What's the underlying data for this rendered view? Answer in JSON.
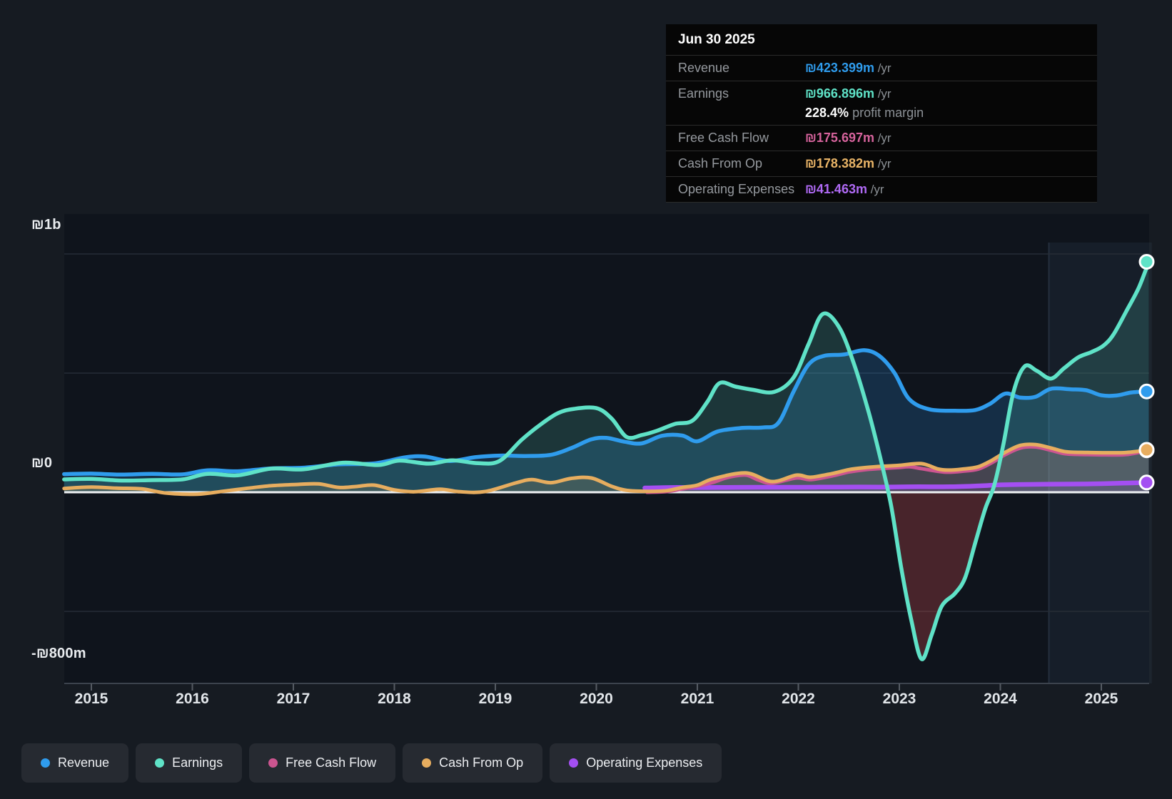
{
  "tooltip": {
    "date": "Jun 30 2025",
    "rows": [
      {
        "key": "revenue",
        "label": "Revenue",
        "value": "₪423.399m",
        "suffix": " /yr",
        "color": "#2f9ced"
      },
      {
        "key": "earnings",
        "label": "Earnings",
        "value": "₪966.896m",
        "suffix": " /yr",
        "color": "#5fe2c7",
        "extra_bold": "228.4%",
        "extra_text": " profit margin"
      },
      {
        "key": "free-cash-flow",
        "label": "Free Cash Flow",
        "value": "₪175.697m",
        "suffix": " /yr",
        "color": "#d6639c"
      },
      {
        "key": "cash-from-op",
        "label": "Cash From Op",
        "value": "₪178.382m",
        "suffix": " /yr",
        "color": "#e9b467"
      },
      {
        "key": "operating-expenses",
        "label": "Operating Expenses",
        "value": "₪41.463m",
        "suffix": " /yr",
        "color": "#b06af5"
      }
    ]
  },
  "y_axis": {
    "labels": [
      {
        "text": "₪1b",
        "value": 1000
      },
      {
        "text": "₪0",
        "value": 0
      },
      {
        "text": "-₪800m",
        "value": -800
      }
    ]
  },
  "x_axis": {
    "labels": [
      "2015",
      "2016",
      "2017",
      "2018",
      "2019",
      "2020",
      "2021",
      "2022",
      "2023",
      "2024",
      "2025"
    ]
  },
  "legend": [
    {
      "label": "Revenue",
      "color": "#2f9ced"
    },
    {
      "label": "Earnings",
      "color": "#5fe2c7"
    },
    {
      "label": "Free Cash Flow",
      "color": "#cc5590"
    },
    {
      "label": "Cash From Op",
      "color": "#e7ad5f"
    },
    {
      "label": "Operating Expenses",
      "color": "#a44ff2"
    }
  ],
  "chart_data": {
    "type": "area",
    "x_unit": "fractional_year",
    "xlim": [
      2014.73,
      2025.5
    ],
    "ylim": [
      -800,
      1000
    ],
    "y_unit": "ILS millions",
    "gridline_values": [
      1000,
      500,
      0,
      -500
    ],
    "zero_line_value": 0,
    "highlight_band": {
      "from": 2024.48,
      "to": 2025.5
    },
    "series": [
      {
        "name": "Revenue",
        "color": "#2f9ced",
        "fill": "rgba(45,140,225,0.22)",
        "points": [
          [
            2014.73,
            76
          ],
          [
            2015.0,
            78
          ],
          [
            2015.3,
            74
          ],
          [
            2015.6,
            77
          ],
          [
            2015.9,
            75
          ],
          [
            2016.15,
            92
          ],
          [
            2016.45,
            88
          ],
          [
            2016.78,
            100
          ],
          [
            2017.1,
            103
          ],
          [
            2017.45,
            117
          ],
          [
            2017.8,
            121
          ],
          [
            2018.1,
            146
          ],
          [
            2018.3,
            150
          ],
          [
            2018.55,
            131
          ],
          [
            2018.8,
            147
          ],
          [
            2019.05,
            154
          ],
          [
            2019.3,
            152
          ],
          [
            2019.55,
            157
          ],
          [
            2019.75,
            185
          ],
          [
            2019.95,
            222
          ],
          [
            2020.1,
            228
          ],
          [
            2020.28,
            212
          ],
          [
            2020.45,
            205
          ],
          [
            2020.65,
            237
          ],
          [
            2020.85,
            238
          ],
          [
            2021.0,
            214
          ],
          [
            2021.2,
            255
          ],
          [
            2021.45,
            270
          ],
          [
            2021.65,
            272
          ],
          [
            2021.8,
            290
          ],
          [
            2021.95,
            420
          ],
          [
            2022.1,
            535
          ],
          [
            2022.25,
            572
          ],
          [
            2022.45,
            578
          ],
          [
            2022.65,
            596
          ],
          [
            2022.8,
            573
          ],
          [
            2022.95,
            502
          ],
          [
            2023.1,
            390
          ],
          [
            2023.3,
            348
          ],
          [
            2023.55,
            342
          ],
          [
            2023.75,
            345
          ],
          [
            2023.9,
            372
          ],
          [
            2024.05,
            414
          ],
          [
            2024.2,
            397
          ],
          [
            2024.35,
            401
          ],
          [
            2024.5,
            434
          ],
          [
            2024.7,
            432
          ],
          [
            2024.85,
            428
          ],
          [
            2025.0,
            407
          ],
          [
            2025.15,
            406
          ],
          [
            2025.3,
            419
          ],
          [
            2025.47,
            423
          ]
        ]
      },
      {
        "name": "Earnings",
        "color": "#5fe2c7",
        "fill": "rgba(95,226,200,0.17)",
        "fill_negative": "rgba(205,75,80,0.30)",
        "points": [
          [
            2014.73,
            54
          ],
          [
            2015.0,
            56
          ],
          [
            2015.3,
            49
          ],
          [
            2015.6,
            51
          ],
          [
            2015.9,
            54
          ],
          [
            2016.15,
            77
          ],
          [
            2016.45,
            71
          ],
          [
            2016.78,
            99
          ],
          [
            2017.1,
            96
          ],
          [
            2017.49,
            124
          ],
          [
            2017.84,
            114
          ],
          [
            2018.05,
            133
          ],
          [
            2018.34,
            120
          ],
          [
            2018.57,
            134
          ],
          [
            2018.83,
            122
          ],
          [
            2019.04,
            131
          ],
          [
            2019.26,
            220
          ],
          [
            2019.45,
            285
          ],
          [
            2019.62,
            332
          ],
          [
            2019.78,
            350
          ],
          [
            2020.0,
            353
          ],
          [
            2020.15,
            310
          ],
          [
            2020.3,
            232
          ],
          [
            2020.45,
            240
          ],
          [
            2020.6,
            258
          ],
          [
            2020.78,
            287
          ],
          [
            2020.95,
            300
          ],
          [
            2021.1,
            380
          ],
          [
            2021.22,
            458
          ],
          [
            2021.38,
            443
          ],
          [
            2021.55,
            430
          ],
          [
            2021.76,
            421
          ],
          [
            2021.95,
            480
          ],
          [
            2022.1,
            620
          ],
          [
            2022.24,
            748
          ],
          [
            2022.4,
            695
          ],
          [
            2022.55,
            540
          ],
          [
            2022.7,
            330
          ],
          [
            2022.82,
            130
          ],
          [
            2022.92,
            -60
          ],
          [
            2023.02,
            -320
          ],
          [
            2023.12,
            -540
          ],
          [
            2023.22,
            -700
          ],
          [
            2023.32,
            -598
          ],
          [
            2023.42,
            -478
          ],
          [
            2023.55,
            -425
          ],
          [
            2023.65,
            -360
          ],
          [
            2023.75,
            -215
          ],
          [
            2023.85,
            -70
          ],
          [
            2023.94,
            30
          ],
          [
            2024.03,
            200
          ],
          [
            2024.13,
            420
          ],
          [
            2024.24,
            528
          ],
          [
            2024.36,
            510
          ],
          [
            2024.5,
            477
          ],
          [
            2024.63,
            520
          ],
          [
            2024.77,
            566
          ],
          [
            2024.9,
            588
          ],
          [
            2025.02,
            615
          ],
          [
            2025.12,
            662
          ],
          [
            2025.25,
            762
          ],
          [
            2025.37,
            858
          ],
          [
            2025.47,
            967
          ]
        ]
      },
      {
        "name": "Free Cash Flow",
        "color": "#cc5590",
        "fill": "rgba(204,85,144,0.10)",
        "points": [
          [
            2020.5,
            0
          ],
          [
            2020.7,
            3
          ],
          [
            2020.85,
            14
          ],
          [
            2021.0,
            25
          ],
          [
            2021.16,
            42
          ],
          [
            2021.3,
            62
          ],
          [
            2021.48,
            72
          ],
          [
            2021.6,
            52
          ],
          [
            2021.74,
            38
          ],
          [
            2021.98,
            60
          ],
          [
            2022.12,
            53
          ],
          [
            2022.33,
            68
          ],
          [
            2022.5,
            85
          ],
          [
            2022.65,
            94
          ],
          [
            2022.8,
            99
          ],
          [
            2023.0,
            104
          ],
          [
            2023.1,
            107
          ],
          [
            2023.22,
            99
          ],
          [
            2023.38,
            88
          ],
          [
            2023.48,
            84
          ],
          [
            2023.62,
            88
          ],
          [
            2023.78,
            97
          ],
          [
            2023.92,
            125
          ],
          [
            2024.05,
            158
          ],
          [
            2024.2,
            186
          ],
          [
            2024.35,
            190
          ],
          [
            2024.5,
            176
          ],
          [
            2024.65,
            161
          ],
          [
            2024.85,
            158
          ],
          [
            2025.05,
            157
          ],
          [
            2025.25,
            158
          ],
          [
            2025.47,
            176
          ]
        ]
      },
      {
        "name": "Cash From Op",
        "color": "#e7ad5f",
        "fill": "rgba(231,173,95,0.16)",
        "points": [
          [
            2014.73,
            16
          ],
          [
            2015.0,
            22
          ],
          [
            2015.25,
            17
          ],
          [
            2015.5,
            14
          ],
          [
            2015.75,
            -4
          ],
          [
            2016.05,
            -8
          ],
          [
            2016.3,
            4
          ],
          [
            2016.55,
            17
          ],
          [
            2016.8,
            28
          ],
          [
            2017.05,
            33
          ],
          [
            2017.25,
            35
          ],
          [
            2017.45,
            20
          ],
          [
            2017.62,
            24
          ],
          [
            2017.8,
            30
          ],
          [
            2018.0,
            10
          ],
          [
            2018.2,
            2
          ],
          [
            2018.45,
            13
          ],
          [
            2018.65,
            2
          ],
          [
            2018.9,
            3
          ],
          [
            2019.2,
            39
          ],
          [
            2019.36,
            53
          ],
          [
            2019.55,
            40
          ],
          [
            2019.75,
            58
          ],
          [
            2019.95,
            60
          ],
          [
            2020.15,
            25
          ],
          [
            2020.3,
            8
          ],
          [
            2020.5,
            4
          ],
          [
            2020.7,
            7
          ],
          [
            2020.85,
            20
          ],
          [
            2021.0,
            30
          ],
          [
            2021.16,
            57
          ],
          [
            2021.48,
            81
          ],
          [
            2021.74,
            45
          ],
          [
            2021.98,
            72
          ],
          [
            2022.12,
            63
          ],
          [
            2022.33,
            78
          ],
          [
            2022.5,
            95
          ],
          [
            2022.65,
            103
          ],
          [
            2022.8,
            108
          ],
          [
            2023.0,
            113
          ],
          [
            2023.22,
            120
          ],
          [
            2023.38,
            98
          ],
          [
            2023.48,
            93
          ],
          [
            2023.62,
            97
          ],
          [
            2023.78,
            107
          ],
          [
            2023.92,
            135
          ],
          [
            2024.05,
            168
          ],
          [
            2024.2,
            197
          ],
          [
            2024.35,
            200
          ],
          [
            2024.5,
            186
          ],
          [
            2024.65,
            170
          ],
          [
            2024.85,
            167
          ],
          [
            2025.05,
            166
          ],
          [
            2025.25,
            167
          ],
          [
            2025.47,
            178
          ]
        ]
      },
      {
        "name": "Operating Expenses",
        "color": "#a44ff2",
        "fill": "rgba(164,79,242,0.12)",
        "points": [
          [
            2020.48,
            18
          ],
          [
            2020.8,
            20
          ],
          [
            2021.2,
            20
          ],
          [
            2021.6,
            21
          ],
          [
            2022.0,
            21
          ],
          [
            2022.4,
            22
          ],
          [
            2022.8,
            22
          ],
          [
            2023.2,
            23
          ],
          [
            2023.5,
            23
          ],
          [
            2023.8,
            27
          ],
          [
            2024.0,
            31
          ],
          [
            2024.3,
            33
          ],
          [
            2024.6,
            34
          ],
          [
            2024.9,
            35
          ],
          [
            2025.2,
            38
          ],
          [
            2025.47,
            41
          ]
        ]
      }
    ]
  }
}
